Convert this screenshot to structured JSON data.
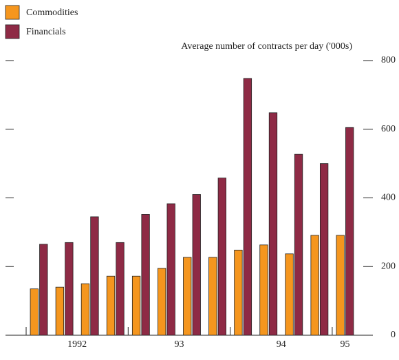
{
  "chart_data": {
    "type": "bar",
    "y_axis_label": "Average number of contracts per day ('000s)",
    "categories": [
      "1992",
      null,
      null,
      null,
      "93",
      null,
      null,
      null,
      "94",
      null,
      null,
      null,
      "95"
    ],
    "series": [
      {
        "name": "Commodities",
        "color": "#f5961e",
        "values": [
          135,
          140,
          150,
          172,
          172,
          195,
          227,
          227,
          248,
          263,
          237,
          291,
          291
        ]
      },
      {
        "name": "Financials",
        "color": "#8e2a45",
        "values": [
          265,
          270,
          345,
          270,
          352,
          383,
          410,
          458,
          748,
          648,
          527,
          500,
          605
        ]
      }
    ],
    "ylim": [
      0,
      800
    ],
    "yticks": [
      0,
      200,
      400,
      600,
      800
    ],
    "legend": "top-left"
  }
}
